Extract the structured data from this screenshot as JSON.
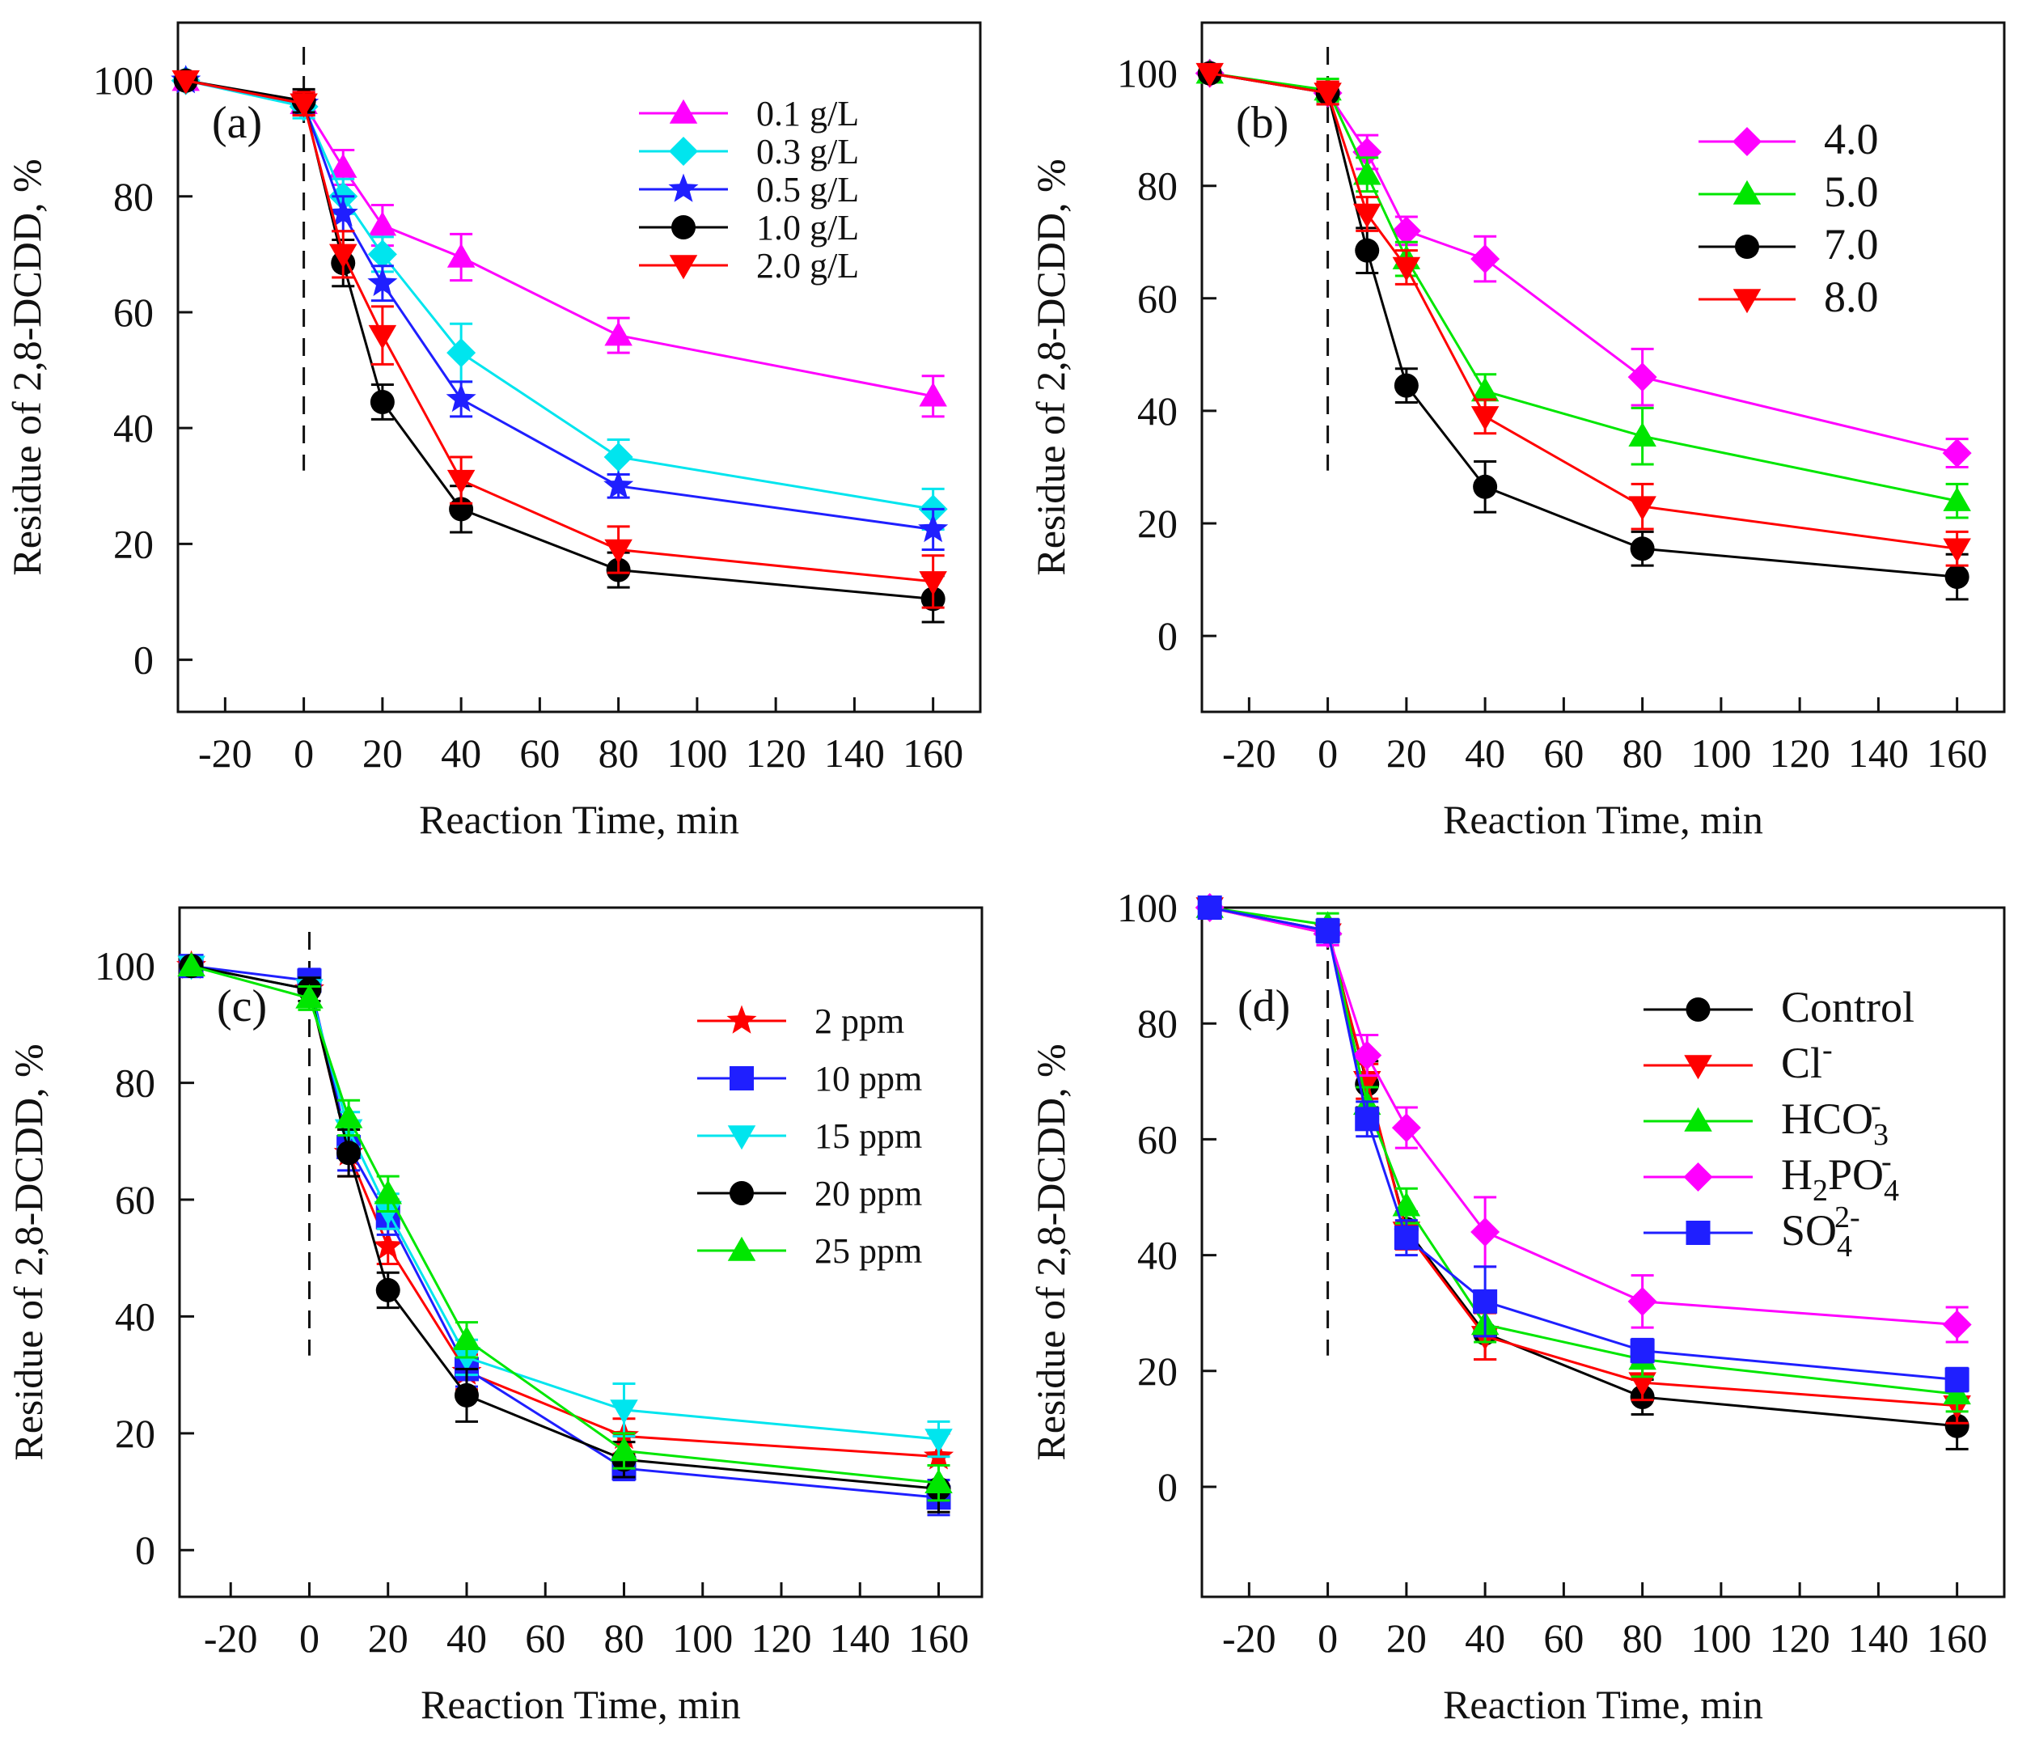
{
  "chart_data": [
    {
      "type": "line",
      "panel_label": "(a)",
      "xlabel": "Reaction Time, min",
      "ylabel": "Residue of 2,8-DCDD, %",
      "xlim": [
        -32,
        172
      ],
      "ylim": [
        -9,
        110
      ],
      "x_ticks": [
        -20,
        0,
        20,
        40,
        60,
        80,
        100,
        120,
        140,
        160
      ],
      "y_ticks": [
        0,
        20,
        40,
        60,
        80,
        100
      ],
      "dashed_marker_x": 0,
      "legend_style": "small",
      "x": [
        -30,
        0,
        10,
        20,
        40,
        80,
        160
      ],
      "series": [
        {
          "name": "0.1 g/L",
          "color": "#ff00ff",
          "marker": "triangle-up",
          "values": [
            100,
            96,
            85,
            75,
            69.5,
            56,
            45.5
          ],
          "err": [
            0,
            2,
            3,
            3.5,
            4,
            3,
            3.5
          ]
        },
        {
          "name": "0.3 g/L",
          "color": "#00e5ee",
          "marker": "diamond",
          "values": [
            100,
            95.5,
            80,
            70,
            53,
            35,
            26
          ],
          "err": [
            0,
            2,
            3,
            3,
            5,
            3,
            3.5
          ]
        },
        {
          "name": "0.5 g/L",
          "color": "#1f1fff",
          "marker": "star",
          "values": [
            100,
            96,
            77,
            65,
            45,
            30,
            22.5
          ],
          "err": [
            0,
            2,
            3,
            3,
            3,
            2,
            3.5
          ]
        },
        {
          "name": "1.0 g/L",
          "color": "#000000",
          "marker": "circle",
          "values": [
            100,
            96.5,
            68.5,
            44.5,
            26,
            15.5,
            10.5
          ],
          "err": [
            0,
            2,
            4,
            3,
            4,
            3,
            4
          ]
        },
        {
          "name": "2.0 g/L",
          "color": "#ff0000",
          "marker": "triangle-down",
          "values": [
            100,
            96,
            70,
            56,
            31,
            19,
            13.5
          ],
          "err": [
            0,
            2,
            4,
            5,
            4,
            4,
            4.5
          ]
        }
      ]
    },
    {
      "type": "line",
      "panel_label": "(b)",
      "xlabel": "Reaction Time, min",
      "ylabel": "Residue of 2,8-DCDD, %",
      "xlim": [
        -32,
        172
      ],
      "ylim": [
        -13.5,
        109
      ],
      "x_ticks": [
        -20,
        0,
        20,
        40,
        60,
        80,
        100,
        120,
        140,
        160
      ],
      "y_ticks": [
        0,
        20,
        40,
        60,
        80,
        100
      ],
      "dashed_marker_x": 0,
      "legend_style": "big",
      "x": [
        -30,
        0,
        10,
        20,
        40,
        80,
        160
      ],
      "series": [
        {
          "name": "4.0",
          "color": "#ff00ff",
          "marker": "diamond",
          "values": [
            100,
            96.5,
            86,
            72,
            67,
            46,
            32.5
          ],
          "err": [
            0,
            2,
            3,
            2.5,
            4,
            5,
            2.5
          ]
        },
        {
          "name": "5.0",
          "color": "#00e600",
          "marker": "triangle-up",
          "values": [
            100,
            97,
            82,
            67,
            43.5,
            35.5,
            24
          ],
          "err": [
            0,
            2,
            3,
            3,
            3,
            5,
            3
          ]
        },
        {
          "name": "7.0",
          "color": "#000000",
          "marker": "circle",
          "values": [
            100,
            96.5,
            68.5,
            44.5,
            26.5,
            15.5,
            10.5
          ],
          "err": [
            0,
            2,
            4,
            3,
            4.5,
            3,
            4
          ]
        },
        {
          "name": "8.0",
          "color": "#ff0000",
          "marker": "triangle-down",
          "values": [
            100,
            96.5,
            75,
            65.5,
            39,
            23,
            15.5
          ],
          "err": [
            0,
            2,
            3,
            3,
            3,
            4,
            3
          ]
        }
      ]
    },
    {
      "type": "line",
      "panel_label": "(c)",
      "xlabel": "Reaction Time, min",
      "ylabel": "Residue of 2,8-DCDD, %",
      "xlim": [
        -33,
        171
      ],
      "ylim": [
        -8,
        110
      ],
      "x_ticks": [
        -20,
        0,
        20,
        40,
        60,
        80,
        100,
        120,
        140,
        160
      ],
      "y_ticks": [
        0,
        20,
        40,
        60,
        80,
        100
      ],
      "dashed_marker_x": 0,
      "legend_style": "small",
      "x": [
        -30,
        0,
        10,
        20,
        40,
        80,
        160
      ],
      "series": [
        {
          "name": "2 ppm",
          "color": "#ff0000",
          "marker": "star",
          "values": [
            100,
            96,
            68,
            52,
            30.5,
            19.5,
            16
          ],
          "err": [
            0,
            2,
            4,
            3,
            3,
            3,
            4
          ]
        },
        {
          "name": "10 ppm",
          "color": "#1f1fff",
          "marker": "square",
          "values": [
            100,
            97.5,
            69,
            57,
            31,
            14,
            9
          ],
          "err": [
            0,
            2,
            4,
            3,
            3,
            2,
            3
          ]
        },
        {
          "name": "15 ppm",
          "color": "#00e5ee",
          "marker": "triangle-down",
          "values": [
            100,
            96,
            72,
            58,
            33,
            24,
            19
          ],
          "err": [
            0,
            2,
            3,
            3,
            3,
            4.5,
            3
          ]
        },
        {
          "name": "20 ppm",
          "color": "#000000",
          "marker": "circle",
          "values": [
            100,
            96,
            68,
            44.5,
            26.5,
            15.5,
            10.5
          ],
          "err": [
            0,
            2,
            4,
            3,
            4.5,
            3,
            4
          ]
        },
        {
          "name": "25 ppm",
          "color": "#00e600",
          "marker": "triangle-up",
          "values": [
            100,
            94.5,
            74,
            61,
            36,
            17,
            11.5
          ],
          "err": [
            0,
            2,
            3,
            3,
            3,
            3,
            3
          ]
        }
      ]
    },
    {
      "type": "line",
      "panel_label": "(d)",
      "xlabel": "Reaction Time, min",
      "ylabel": "Residue of 2,8-DCDD, %",
      "xlim": [
        -32,
        172
      ],
      "ylim": [
        -19,
        100
      ],
      "x_ticks": [
        -20,
        0,
        20,
        40,
        60,
        80,
        100,
        120,
        140,
        160
      ],
      "y_ticks": [
        0,
        20,
        40,
        60,
        80,
        100
      ],
      "dashed_marker_x": 0,
      "legend_style": "big",
      "x": [
        -30,
        0,
        10,
        20,
        40,
        80,
        160
      ],
      "series": [
        {
          "name": "Control",
          "name_sub": "",
          "name_sup": "",
          "name_tail": "",
          "color": "#000000",
          "marker": "circle",
          "values": [
            100,
            96,
            69.5,
            44.5,
            26.5,
            15.5,
            10.5
          ],
          "err": [
            0,
            2,
            4,
            3,
            4.5,
            3,
            4
          ]
        },
        {
          "name": "Cl",
          "name_sub": "",
          "name_sup": "-",
          "name_tail": "",
          "color": "#ff0000",
          "marker": "triangle-down",
          "values": [
            100,
            95.5,
            70,
            44,
            26,
            18,
            14
          ],
          "err": [
            0,
            2,
            3,
            3,
            4,
            3,
            3
          ]
        },
        {
          "name": "HCO",
          "name_sub": "3",
          "name_sup": "-",
          "name_tail": "",
          "color": "#00e600",
          "marker": "triangle-up",
          "values": [
            100,
            97,
            66,
            48.5,
            28,
            22,
            16
          ],
          "err": [
            0,
            2,
            3,
            3,
            3,
            3,
            3
          ]
        },
        {
          "name": "H",
          "name_sub": "2",
          "name_sup": "",
          "name_tail": "PO",
          "tail_sub": "4",
          "tail_sup": "-",
          "color": "#ff00ff",
          "marker": "diamond",
          "values": [
            100,
            95.5,
            74.5,
            62,
            44,
            32,
            28
          ],
          "err": [
            0,
            2,
            3.5,
            3.5,
            6,
            4.5,
            3
          ]
        },
        {
          "name": "SO",
          "name_sub": "4",
          "name_sup": "2-",
          "name_tail": "",
          "color": "#1f1fff",
          "marker": "square",
          "values": [
            100,
            96,
            63.5,
            43,
            32,
            23.5,
            18.5
          ],
          "err": [
            0,
            2,
            3,
            3,
            6,
            2,
            2
          ]
        }
      ]
    }
  ]
}
